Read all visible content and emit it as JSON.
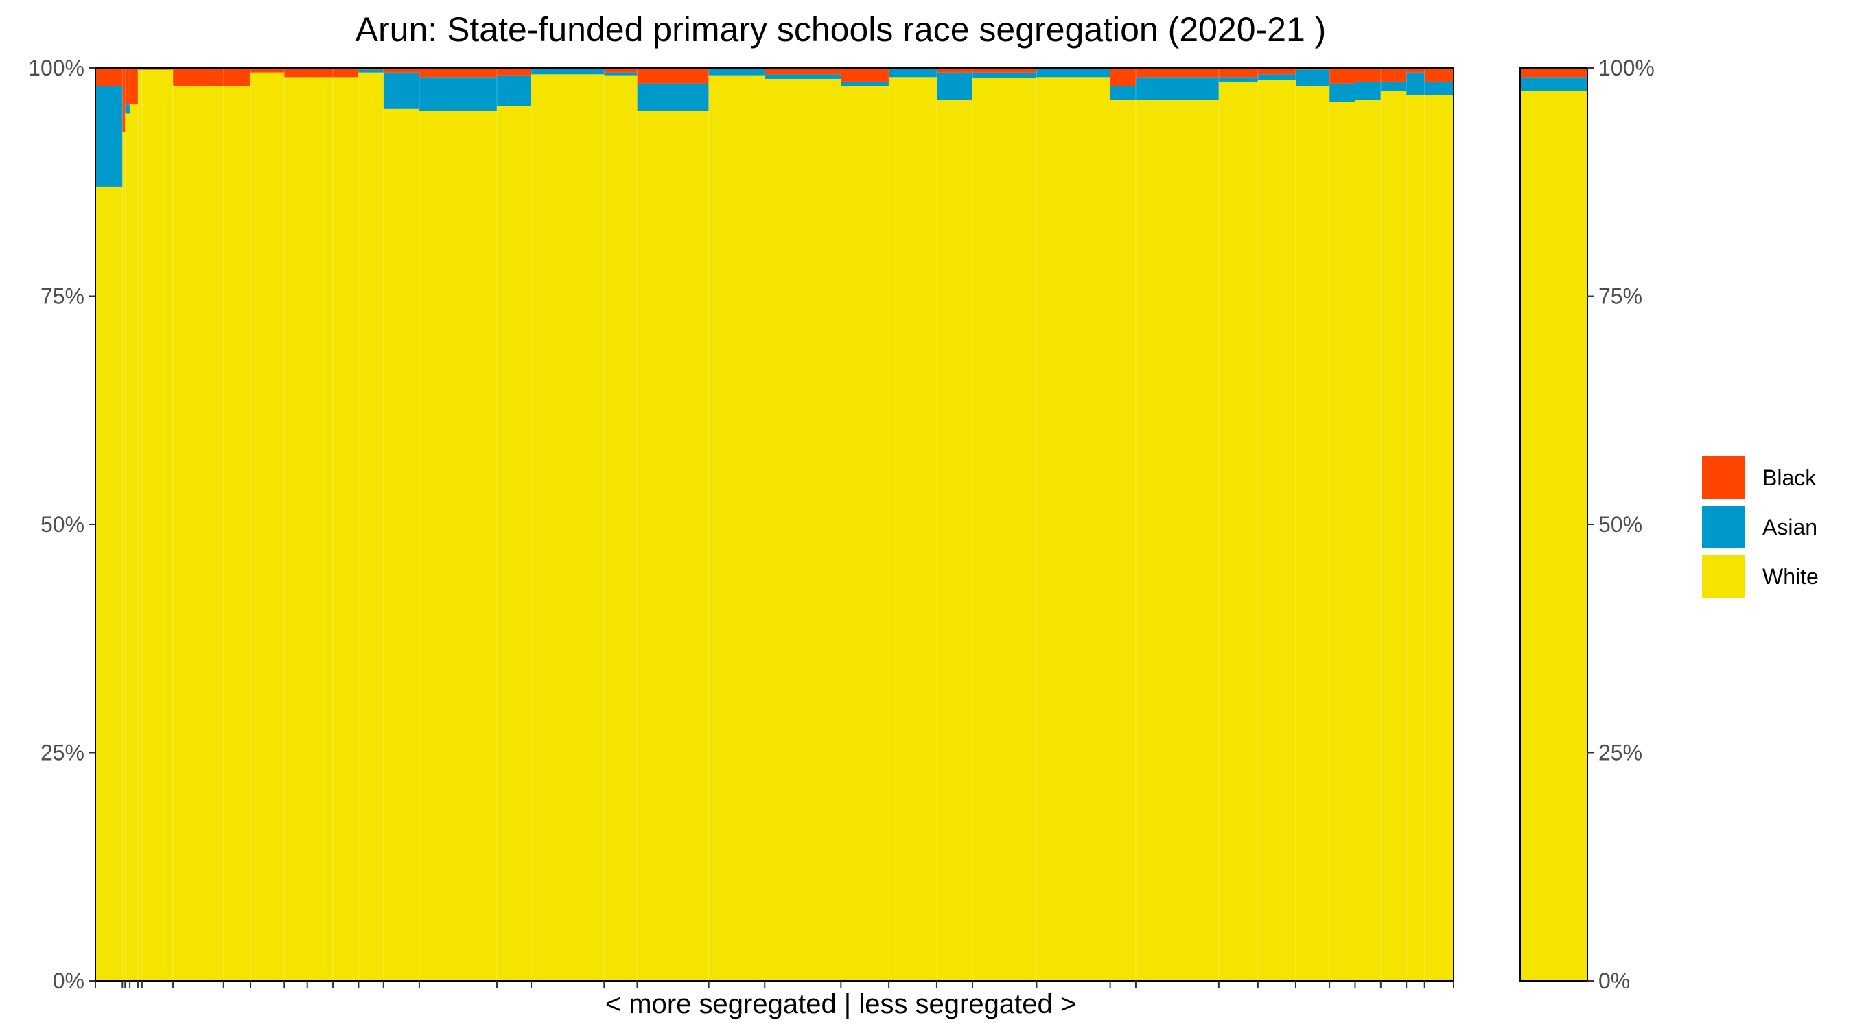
{
  "chart_data": {
    "type": "bar",
    "title": "Arun: State-funded primary schools race segregation (2020-21 )",
    "xlabel": "< more segregated | less segregated >",
    "ylabel": "",
    "ylim": [
      0,
      100
    ],
    "y_ticks": [
      "0%",
      "25%",
      "50%",
      "75%",
      "100%"
    ],
    "colors": {
      "Black": "#ff4500",
      "Asian": "#0099cc",
      "White": "#f5e400"
    },
    "legend": [
      {
        "name": "Black",
        "color": "#ff4500"
      },
      {
        "name": "Asian",
        "color": "#0099cc"
      },
      {
        "name": "White",
        "color": "#f5e400"
      }
    ],
    "legend_position": "right",
    "grid": false,
    "bars": [
      {
        "w": 4.0,
        "white": 87.0,
        "asian": 11.0,
        "black": 2.0
      },
      {
        "w": 0.4,
        "white": 93.0,
        "asian": 0.0,
        "black": 7.0
      },
      {
        "w": 0.7,
        "white": 95.0,
        "asian": 1.0,
        "black": 4.0
      },
      {
        "w": 1.2,
        "white": 96.0,
        "asian": 0.0,
        "black": 4.0
      },
      {
        "w": 0.6,
        "white": 99.8,
        "asian": 0.0,
        "black": 0.2
      },
      {
        "w": 4.6,
        "white": 99.8,
        "asian": 0.0,
        "black": 0.2
      },
      {
        "w": 7.5,
        "white": 98.0,
        "asian": 0.0,
        "black": 2.0
      },
      {
        "w": 4.0,
        "white": 98.0,
        "asian": 0.0,
        "black": 2.0
      },
      {
        "w": 5.0,
        "white": 99.5,
        "asian": 0.0,
        "black": 0.5
      },
      {
        "w": 3.4,
        "white": 99.0,
        "asian": 0.0,
        "black": 1.0
      },
      {
        "w": 3.8,
        "white": 99.0,
        "asian": 0.0,
        "black": 1.0
      },
      {
        "w": 3.8,
        "white": 99.0,
        "asian": 0.0,
        "black": 1.0
      },
      {
        "w": 3.7,
        "white": 99.5,
        "asian": 0.3,
        "black": 0.2
      },
      {
        "w": 5.3,
        "white": 95.5,
        "asian": 4.0,
        "black": 0.5
      },
      {
        "w": 11.5,
        "white": 95.3,
        "asian": 3.7,
        "black": 1.0
      },
      {
        "w": 5.1,
        "white": 95.8,
        "asian": 3.4,
        "black": 0.8
      },
      {
        "w": 10.8,
        "white": 99.3,
        "asian": 0.7,
        "black": 0.0
      },
      {
        "w": 4.9,
        "white": 99.2,
        "asian": 0.3,
        "black": 0.5
      },
      {
        "w": 10.6,
        "white": 95.3,
        "asian": 3.0,
        "black": 1.7
      },
      {
        "w": 8.3,
        "white": 99.2,
        "asian": 0.8,
        "black": 0.0
      },
      {
        "w": 11.3,
        "white": 98.8,
        "asian": 0.5,
        "black": 0.7
      },
      {
        "w": 7.1,
        "white": 98.0,
        "asian": 0.5,
        "black": 1.5
      },
      {
        "w": 7.1,
        "white": 99.0,
        "asian": 1.0,
        "black": 0.0
      },
      {
        "w": 5.3,
        "white": 96.5,
        "asian": 3.0,
        "black": 0.5
      },
      {
        "w": 9.5,
        "white": 98.9,
        "asian": 0.6,
        "black": 0.5
      },
      {
        "w": 10.9,
        "white": 99.0,
        "asian": 1.0,
        "black": 0.0
      },
      {
        "w": 3.8,
        "white": 96.5,
        "asian": 1.5,
        "black": 2.0
      },
      {
        "w": 12.3,
        "white": 96.5,
        "asian": 2.5,
        "black": 1.0
      },
      {
        "w": 5.8,
        "white": 98.5,
        "asian": 0.5,
        "black": 1.0
      },
      {
        "w": 5.6,
        "white": 98.7,
        "asian": 0.6,
        "black": 0.7
      },
      {
        "w": 5.0,
        "white": 98.0,
        "asian": 1.8,
        "black": 0.2
      },
      {
        "w": 3.8,
        "white": 96.3,
        "asian": 2.0,
        "black": 1.7
      },
      {
        "w": 3.8,
        "white": 96.5,
        "asian": 2.0,
        "black": 1.5
      },
      {
        "w": 3.8,
        "white": 97.5,
        "asian": 1.0,
        "black": 1.5
      },
      {
        "w": 2.7,
        "white": 97.0,
        "asian": 2.5,
        "black": 0.5
      },
      {
        "w": 4.3,
        "white": 97.0,
        "asian": 1.5,
        "black": 1.5
      }
    ],
    "summary_bar": {
      "white": 97.5,
      "asian": 1.5,
      "black": 1.0
    }
  }
}
